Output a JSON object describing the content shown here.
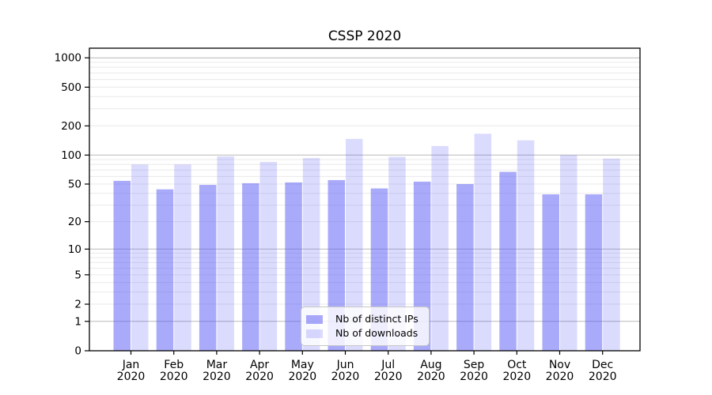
{
  "chart_data": {
    "type": "bar",
    "title": "CSSP 2020",
    "categories": [
      "Jan",
      "Feb",
      "Mar",
      "Apr",
      "May",
      "Jun",
      "Jul",
      "Aug",
      "Sep",
      "Oct",
      "Nov",
      "Dec"
    ],
    "category_sublabel": "2020",
    "series": [
      {
        "name": "Nb of distinct IPs",
        "values": [
          54,
          44,
          49,
          51,
          52,
          55,
          45,
          53,
          50,
          67,
          39,
          39
        ]
      },
      {
        "name": "Nb of downloads",
        "values": [
          80,
          80,
          97,
          85,
          93,
          147,
          96,
          124,
          166,
          142,
          100,
          92
        ]
      }
    ],
    "yscale": "symlog-log1p",
    "yticks": [
      0,
      1,
      2,
      5,
      10,
      20,
      50,
      100,
      200,
      500,
      1000
    ],
    "ylim": [
      0,
      1250
    ],
    "xlabel": "",
    "ylabel": "",
    "grid": "horizontal, major at 1/10/100/1000, minor at 2-9 per decade",
    "legend_position": "lower center",
    "colors": {
      "bar_base": "#5555f5",
      "series_alpha": [
        0.5,
        0.21
      ],
      "grid_major": "#b8b8b8",
      "grid_minor": "#e9e9e9",
      "axis": "#000000",
      "text": "#000000"
    }
  }
}
